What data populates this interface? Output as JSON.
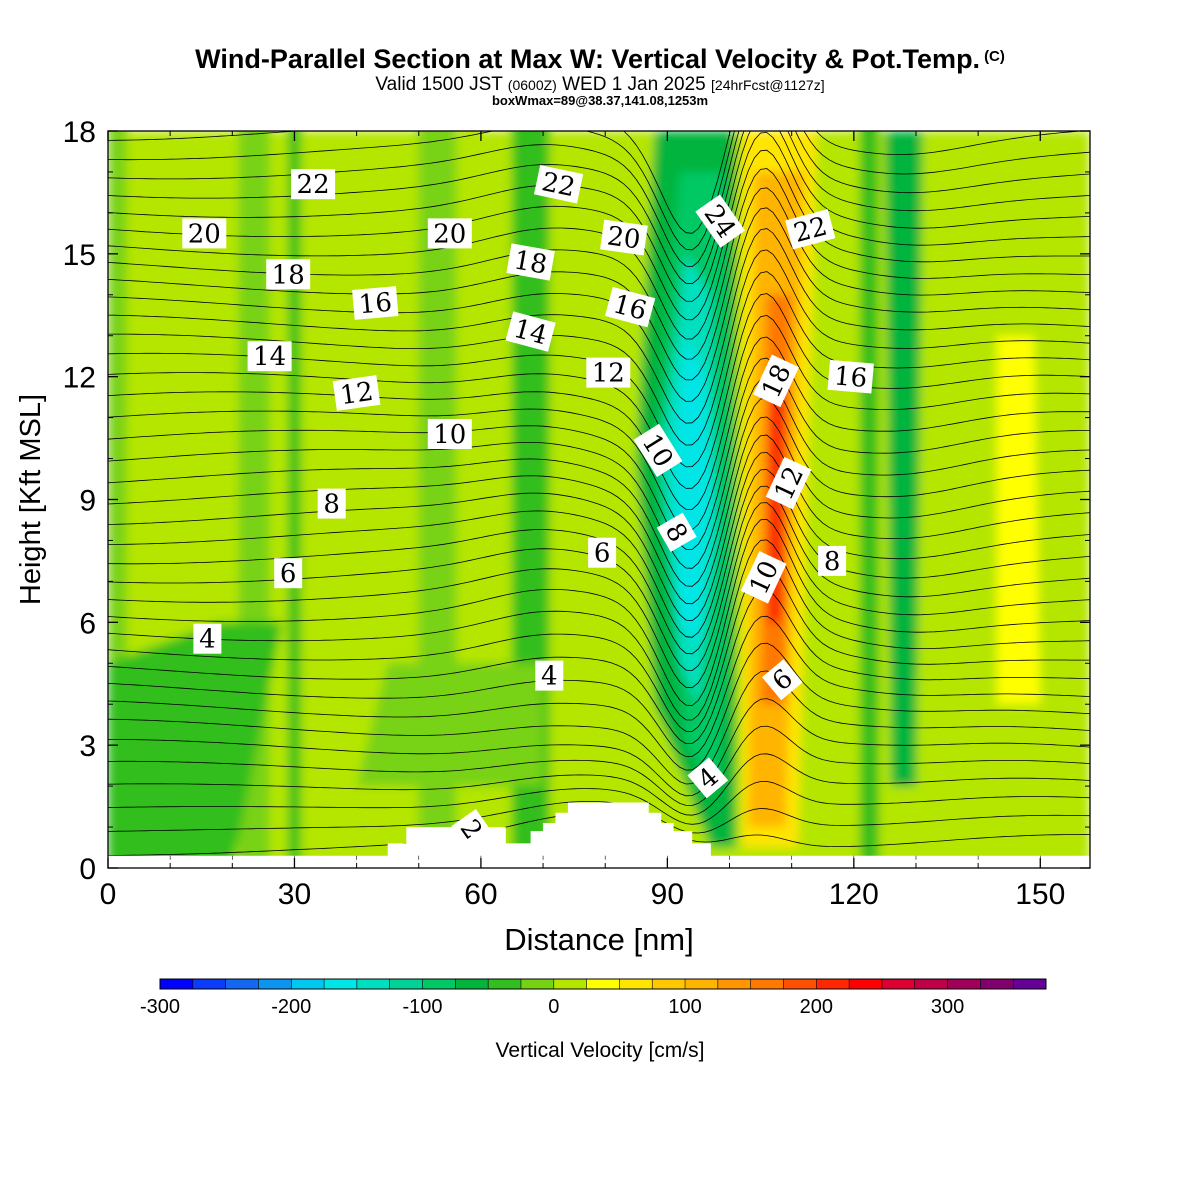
{
  "header": {
    "title": "Wind-Parallel Section at Max W: Vertical Velocity & Pot.Temp.",
    "copyright": "(C)",
    "valid_main": "Valid 1500 JST",
    "valid_utc": "(0600Z)",
    "valid_date": "WED 1 Jan 2025",
    "forecast": "[24hrFcst@1127z]",
    "box_info": "boxWmax=89@38.37,141.08,1253m"
  },
  "chart_data": {
    "type": "heatmap",
    "xlabel": "Distance [nm]",
    "ylabel": "Height [Kft MSL]",
    "xlim": [
      0,
      158
    ],
    "ylim": [
      0,
      18
    ],
    "x_ticks": [
      0,
      30,
      60,
      90,
      120,
      150
    ],
    "y_ticks": [
      0,
      3,
      6,
      9,
      12,
      15,
      18
    ],
    "colorbar": {
      "label": "Vertical Velocity [cm/s]",
      "ticks": [
        -300,
        -200,
        -100,
        0,
        100,
        200,
        300
      ],
      "levels": [
        -300,
        -275,
        -250,
        -225,
        -200,
        -175,
        -150,
        -125,
        -100,
        -75,
        -50,
        -25,
        0,
        25,
        50,
        75,
        100,
        125,
        150,
        175,
        200,
        225,
        250,
        275,
        300,
        325,
        350,
        375
      ],
      "colors": [
        "#0000ff",
        "#0a3cfa",
        "#1468f0",
        "#0a96f0",
        "#00c8f0",
        "#00e6e6",
        "#00e0c0",
        "#00d296",
        "#00c864",
        "#00b43c",
        "#32be1e",
        "#78d214",
        "#b4e600",
        "#ffff00",
        "#ffe600",
        "#ffc800",
        "#ffb400",
        "#ff9600",
        "#ff7800",
        "#ff5000",
        "#ff2800",
        "#ff0000",
        "#dc0032",
        "#be0046",
        "#a0005a",
        "#82006e",
        "#640096"
      ]
    },
    "contours": {
      "variable": "Potential temperature",
      "labels": [
        {
          "x": 33,
          "y": 16.7,
          "text": "22",
          "angle": 0
        },
        {
          "x": 15.5,
          "y": 15.5,
          "text": "20",
          "angle": 0
        },
        {
          "x": 29,
          "y": 14.5,
          "text": "18",
          "angle": 0
        },
        {
          "x": 43,
          "y": 13.8,
          "text": "16",
          "angle": -5
        },
        {
          "x": 26,
          "y": 12.5,
          "text": "14",
          "angle": 0
        },
        {
          "x": 40,
          "y": 11.6,
          "text": "12",
          "angle": -8
        },
        {
          "x": 55,
          "y": 10.6,
          "text": "10",
          "angle": 0
        },
        {
          "x": 36,
          "y": 8.9,
          "text": "8",
          "angle": 0
        },
        {
          "x": 29,
          "y": 7.2,
          "text": "6",
          "angle": 0
        },
        {
          "x": 16,
          "y": 5.6,
          "text": "4",
          "angle": 0
        },
        {
          "x": 55,
          "y": 15.5,
          "text": "20",
          "angle": 0
        },
        {
          "x": 72.5,
          "y": 16.7,
          "text": "22",
          "angle": 12
        },
        {
          "x": 68,
          "y": 14.8,
          "text": "18",
          "angle": 10
        },
        {
          "x": 68,
          "y": 13.1,
          "text": "14",
          "angle": 15
        },
        {
          "x": 83,
          "y": 15.4,
          "text": "20",
          "angle": 8
        },
        {
          "x": 84,
          "y": 13.7,
          "text": "16",
          "angle": 15
        },
        {
          "x": 80.5,
          "y": 12.1,
          "text": "12",
          "angle": 0
        },
        {
          "x": 88.5,
          "y": 10.2,
          "text": "10",
          "angle": 58
        },
        {
          "x": 79.5,
          "y": 7.7,
          "text": "6",
          "angle": 0
        },
        {
          "x": 91.5,
          "y": 8.2,
          "text": "8",
          "angle": 60
        },
        {
          "x": 71,
          "y": 4.7,
          "text": "4",
          "angle": 0
        },
        {
          "x": 58.5,
          "y": 0.95,
          "text": "2",
          "angle": 55
        },
        {
          "x": 98.5,
          "y": 15.8,
          "text": "24",
          "angle": 55
        },
        {
          "x": 113,
          "y": 15.6,
          "text": "22",
          "angle": -15
        },
        {
          "x": 107.5,
          "y": 11.9,
          "text": "18",
          "angle": -65
        },
        {
          "x": 119.5,
          "y": 12.0,
          "text": "16",
          "angle": 5
        },
        {
          "x": 109.5,
          "y": 9.4,
          "text": "12",
          "angle": -65
        },
        {
          "x": 116.5,
          "y": 7.5,
          "text": "8",
          "angle": 0
        },
        {
          "x": 105.5,
          "y": 7.1,
          "text": "10",
          "angle": -65
        },
        {
          "x": 108.5,
          "y": 4.6,
          "text": "6",
          "angle": -40
        },
        {
          "x": 96.5,
          "y": 2.2,
          "text": "4",
          "angle": -40
        }
      ]
    },
    "terrain_kft": [
      [
        0,
        0.3
      ],
      [
        45,
        0.3
      ],
      [
        45,
        0.6
      ],
      [
        48,
        0.6
      ],
      [
        48,
        1.0
      ],
      [
        64,
        1.0
      ],
      [
        64,
        0.6
      ],
      [
        68,
        0.6
      ],
      [
        68,
        0.9
      ],
      [
        70,
        0.9
      ],
      [
        70,
        1.1
      ],
      [
        72,
        1.1
      ],
      [
        72,
        1.35
      ],
      [
        74,
        1.35
      ],
      [
        74,
        1.6
      ],
      [
        87,
        1.6
      ],
      [
        87,
        1.35
      ],
      [
        89,
        1.35
      ],
      [
        89,
        1.1
      ],
      [
        91,
        1.1
      ],
      [
        91,
        0.9
      ],
      [
        94,
        0.9
      ],
      [
        94,
        0.6
      ],
      [
        97,
        0.6
      ],
      [
        97,
        0.3
      ],
      [
        158,
        0.3
      ]
    ]
  }
}
